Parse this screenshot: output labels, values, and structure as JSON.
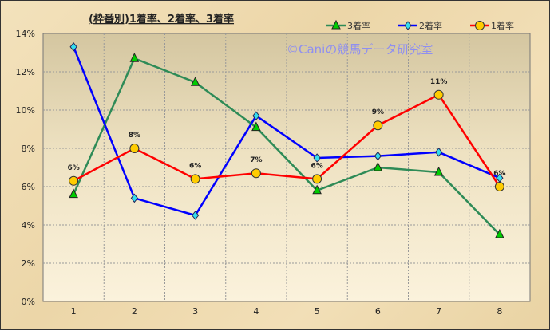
{
  "chart_data": {
    "type": "line",
    "title": "(枠番別)1着率、2着率、3着率",
    "watermark": "©Caniの競馬データ研究室",
    "categories": [
      "1",
      "2",
      "3",
      "4",
      "5",
      "6",
      "7",
      "8"
    ],
    "ylim": [
      0,
      14
    ],
    "yticks": [
      "0%",
      "2%",
      "4%",
      "6%",
      "8%",
      "10%",
      "12%",
      "14%"
    ],
    "grid": true,
    "legend": "top-right",
    "series": [
      {
        "name": "3着率",
        "color": "#2e8b57",
        "marker": "triangle",
        "marker_color": "#00cc00",
        "values": [
          5.6,
          12.7,
          11.45,
          9.1,
          5.8,
          7.0,
          6.75,
          3.5
        ]
      },
      {
        "name": "2着率",
        "color": "#0000ff",
        "marker": "diamond",
        "marker_color": "#33ddee",
        "values": [
          13.3,
          5.4,
          4.5,
          9.7,
          7.5,
          7.6,
          7.8,
          6.45
        ]
      },
      {
        "name": "1着率",
        "color": "#ff0000",
        "marker": "circle",
        "marker_color": "#ffcc00",
        "values": [
          6.3,
          8.0,
          6.4,
          6.7,
          6.4,
          9.2,
          10.8,
          6.0
        ],
        "labels": [
          "6%",
          "8%",
          "6%",
          "7%",
          "6%",
          "9%",
          "11%",
          "6%"
        ]
      }
    ]
  }
}
